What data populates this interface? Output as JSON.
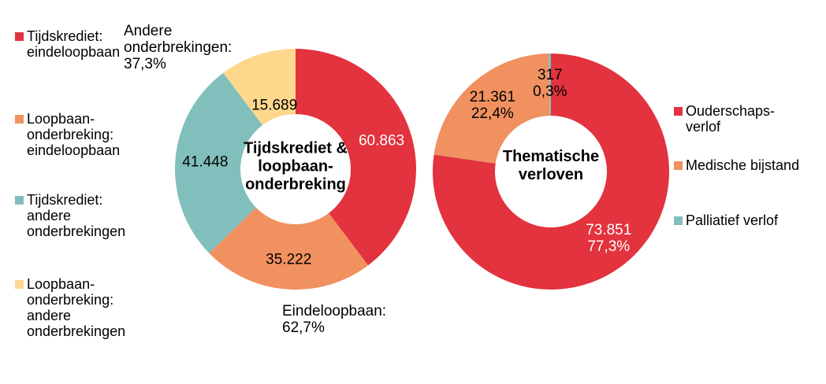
{
  "palette": {
    "red": "#E2333E",
    "orange": "#F0915F",
    "teal": "#81BFBC",
    "yellow": "#FDD78C",
    "label_light": "#FFFFFF",
    "label_dark": "#000000"
  },
  "legend_left": {
    "items": [
      {
        "label": "Tijdskrediet:\neindeloopbaan",
        "color": "#E2333E"
      },
      {
        "label": "Loopbaan-\nonderbreking:\neindeloopbaan",
        "color": "#F0915F"
      },
      {
        "label": "Tijdskrediet:\nandere\nonderbrekingen",
        "color": "#81BFBC"
      },
      {
        "label": "Loopbaan-\nonderbreking:\nandere\nonderbrekingen",
        "color": "#FDD78C"
      }
    ]
  },
  "legend_right": {
    "items": [
      {
        "label": "Ouderschaps-\nverlof",
        "color": "#E2333E"
      },
      {
        "label": "Medische bijstand",
        "color": "#F0915F"
      },
      {
        "label": "Palliatief verlof",
        "color": "#81BFBC"
      }
    ]
  },
  "chart_data": [
    {
      "type": "pie",
      "subtype": "donut",
      "title": "Tijdskrediet & loopbaan-onderbreking",
      "center_label": "Tijdskrediet &\nloopbaan-\nonderbreking",
      "legend_position": "left",
      "slices": [
        {
          "name": "Tijdskrediet: eindeloopbaan",
          "value": 60863,
          "display": "60.863",
          "color": "#E2333E",
          "label_color": "#FFFFFF"
        },
        {
          "name": "Loopbaan-onderbreking: eindeloopbaan",
          "value": 35222,
          "display": "35.222",
          "color": "#F0915F",
          "label_color": "#000000"
        },
        {
          "name": "Tijdskrediet: andere onderbrekingen",
          "value": 41448,
          "display": "41.448",
          "color": "#81BFBC",
          "label_color": "#000000"
        },
        {
          "name": "Loopbaan-onderbreking: andere onderbrekingen",
          "value": 15689,
          "display": "15.689",
          "color": "#FDD78C",
          "label_color": "#000000"
        }
      ],
      "annotations": [
        {
          "text": "Andere\nonderbrekingen:\n37,3%"
        },
        {
          "text": "Eindeloopbaan:\n62,7%"
        }
      ]
    },
    {
      "type": "pie",
      "subtype": "donut",
      "title": "Thematische verloven",
      "center_label": "Thematische\nverloven",
      "legend_position": "right",
      "slices": [
        {
          "name": "Ouderschapsverlof",
          "value": 73851,
          "display": "73.851\n77,3%",
          "color": "#E2333E",
          "label_color": "#FFFFFF"
        },
        {
          "name": "Medische bijstand",
          "value": 21361,
          "display": "21.361\n22,4%",
          "color": "#F0915F",
          "label_color": "#000000"
        },
        {
          "name": "Palliatief verlof",
          "value": 317,
          "display": "317\n0,3%",
          "color": "#81BFBC",
          "label_color": "#000000"
        }
      ],
      "annotations": []
    }
  ]
}
